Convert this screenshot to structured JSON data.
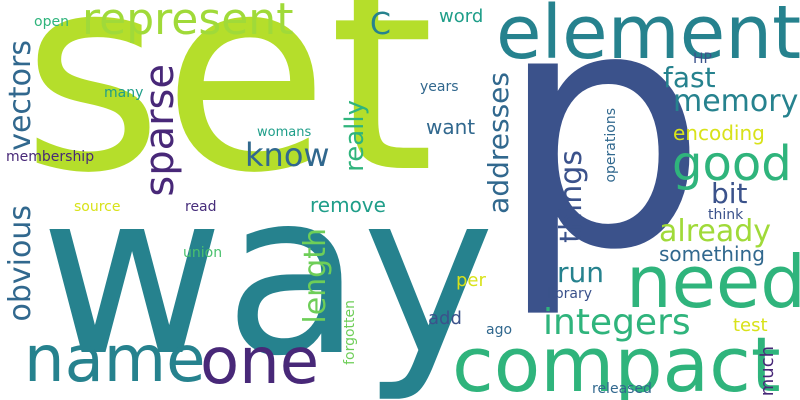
{
  "words": {
    "set": "set",
    "p": "p",
    "way": "way",
    "element": "element",
    "compact": "compact",
    "need": "need",
    "name": "name",
    "one": "one",
    "represent": "represent",
    "good": "good",
    "sparse": "sparse",
    "integers": "integers",
    "vectors": "vectors",
    "know": "know",
    "memory": "memory",
    "addresses": "addresses",
    "things": "things",
    "obvious": "obvious",
    "length": "length",
    "really": "really",
    "fast": "fast",
    "already": "already",
    "run": "run",
    "bit": "bit",
    "encoding": "encoding",
    "c": "C",
    "want": "want",
    "remove": "remove",
    "something": "something",
    "word": "word",
    "test": "test",
    "add": "add",
    "per": "per",
    "much": "much",
    "operations": "operations",
    "membership": "membership",
    "library": "library",
    "released": "released",
    "forgotten": "forgotten",
    "open": "open",
    "many": "many",
    "womans": "womans",
    "source": "source",
    "read": "read",
    "union": "union",
    "years": "years",
    "hp": "HP",
    "think": "think",
    "ago": "ago"
  },
  "colors": {
    "lime": "#b5de2b",
    "lime2": "#a0da39",
    "teal": "#26828e",
    "teal2": "#1f9e89",
    "green": "#2fb47c",
    "green2": "#4ac16d",
    "navy": "#3b528b",
    "navy2": "#31688e",
    "purple": "#482878",
    "purple2": "#472d7b",
    "yellow": "#d8e219",
    "lightgreen": "#6ece58"
  }
}
